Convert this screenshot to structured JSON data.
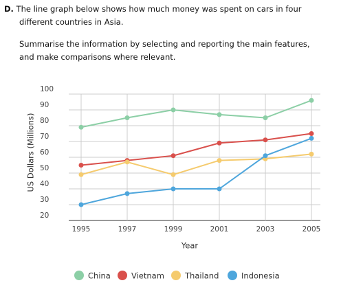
{
  "header": {
    "label": "D.",
    "text": "The line graph below shows how much money was spent on cars in four different countries in Asia.",
    "instruction": "Summarise the information by selecting and reporting the main features, and make comparisons where relevant."
  },
  "chart_data": {
    "type": "line",
    "x_label": "Year",
    "y_label": "US Dollars (Millions)",
    "categories": [
      "1995",
      "1997",
      "1999",
      "2001",
      "2003",
      "2005"
    ],
    "series": [
      {
        "name": "China",
        "color": "#8ccfa6",
        "values": [
          79,
          85,
          90,
          87,
          85,
          96
        ]
      },
      {
        "name": "Vietnam",
        "color": "#d9504c",
        "values": [
          55,
          58,
          61,
          69,
          71,
          75
        ]
      },
      {
        "name": "Thailand",
        "color": "#f5cb6e",
        "values": [
          49,
          57,
          49,
          58,
          59,
          62
        ]
      },
      {
        "name": "Indonesia",
        "color": "#4ea6dc",
        "values": [
          30,
          37,
          40,
          40,
          61,
          72
        ]
      }
    ],
    "ylim": [
      20,
      100
    ],
    "yticks": [
      20,
      30,
      40,
      50,
      60,
      70,
      80,
      90,
      100
    ],
    "grid": true,
    "legend": "bottom"
  }
}
